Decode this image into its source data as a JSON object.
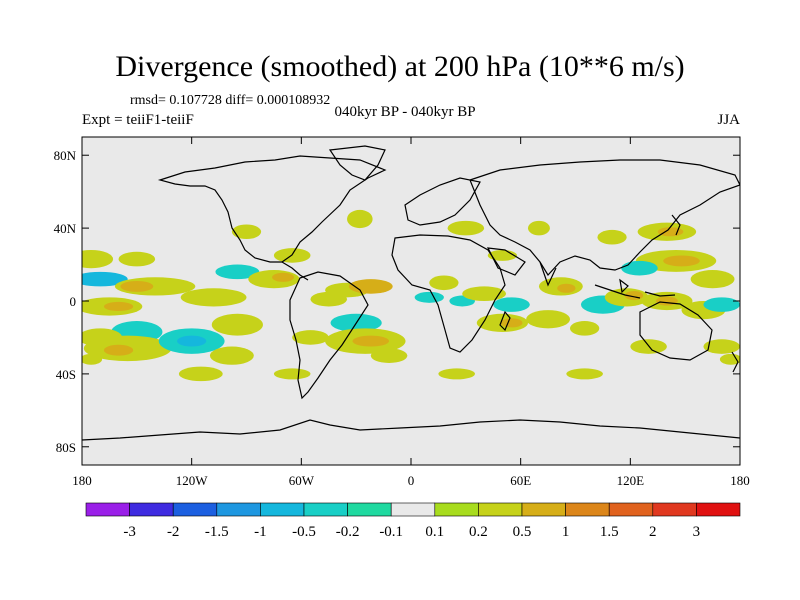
{
  "header": {
    "title": "Divergence (smoothed) at 200 hPa (10**6 m/s)",
    "stats": "rmsd= 0.107728 diff= 0.000108932",
    "period": "040kyr BP - 040kyr BP",
    "experiment": "Expt = teiiF1-teiiF",
    "season": "JJA"
  },
  "axes": {
    "y_ticks": [
      {
        "label": "80N",
        "lat": 80
      },
      {
        "label": "40N",
        "lat": 40
      },
      {
        "label": "0",
        "lat": 0
      },
      {
        "label": "40S",
        "lat": -40
      },
      {
        "label": "80S",
        "lat": -80
      }
    ],
    "x_ticks": [
      {
        "label": "180",
        "lon": -180
      },
      {
        "label": "120W",
        "lon": -120
      },
      {
        "label": "60W",
        "lon": -60
      },
      {
        "label": "0",
        "lon": 0
      },
      {
        "label": "60E",
        "lon": 60
      },
      {
        "label": "120E",
        "lon": 120
      },
      {
        "label": "180",
        "lon": 180
      }
    ],
    "lon_range": [
      -180,
      180
    ],
    "lat_range": [
      -90,
      90
    ]
  },
  "colorbar": {
    "levels": [
      "-3",
      "-2",
      "-1.5",
      "-1",
      "-0.5",
      "-0.2",
      "-0.1",
      "0.1",
      "0.2",
      "0.5",
      "1",
      "1.5",
      "2",
      "3"
    ],
    "colors": [
      "#9a1fe8",
      "#3f2be0",
      "#1c5fe0",
      "#1e97e0",
      "#15b7dd",
      "#19cfc6",
      "#1fd9a0",
      "#e9e9e9",
      "#a8dc1e",
      "#c6d21a",
      "#d6ae18",
      "#dc861a",
      "#e0621e",
      "#e0381f",
      "#e01111"
    ]
  },
  "colors": {
    "background": "#e9e9e9",
    "coast": "#000000"
  },
  "field_blobs": [
    {
      "lon": -175,
      "lat": 23,
      "rlon": 12,
      "rlat": 5,
      "level": "0.2"
    },
    {
      "lon": -150,
      "lat": 23,
      "rlon": 10,
      "rlat": 4,
      "level": "0.2"
    },
    {
      "lon": -170,
      "lat": 12,
      "rlon": 15,
      "rlat": 4,
      "level": "-0.5"
    },
    {
      "lon": -140,
      "lat": 8,
      "rlon": 22,
      "rlat": 5,
      "level": "0.2"
    },
    {
      "lon": -150,
      "lat": 8,
      "rlon": 9,
      "rlat": 3,
      "level": "0.5"
    },
    {
      "lon": -165,
      "lat": -3,
      "rlon": 18,
      "rlat": 5,
      "level": "0.2"
    },
    {
      "lon": -160,
      "lat": -3,
      "rlon": 8,
      "rlat": 2.5,
      "level": "0.5"
    },
    {
      "lon": -108,
      "lat": 2,
      "rlon": 18,
      "rlat": 5,
      "level": "0.2"
    },
    {
      "lon": -95,
      "lat": 16,
      "rlon": 12,
      "rlat": 4,
      "level": "-0.2"
    },
    {
      "lon": -75,
      "lat": 12,
      "rlon": 14,
      "rlat": 5,
      "level": "0.2"
    },
    {
      "lon": -70,
      "lat": 13,
      "rlon": 6,
      "rlat": 2.5,
      "level": "0.5"
    },
    {
      "lon": -150,
      "lat": -17,
      "rlon": 14,
      "rlat": 6,
      "level": "-0.2"
    },
    {
      "lon": -170,
      "lat": -20,
      "rlon": 12,
      "rlat": 5,
      "level": "0.2"
    },
    {
      "lon": -155,
      "lat": -26,
      "rlon": 24,
      "rlat": 7,
      "level": "0.2"
    },
    {
      "lon": -160,
      "lat": -27,
      "rlon": 8,
      "rlat": 3,
      "level": "0.5"
    },
    {
      "lon": -120,
      "lat": -22,
      "rlon": 18,
      "rlat": 7,
      "level": "-0.2"
    },
    {
      "lon": -120,
      "lat": -22,
      "rlon": 8,
      "rlat": 3,
      "level": "-0.5"
    },
    {
      "lon": -95,
      "lat": -13,
      "rlon": 14,
      "rlat": 6,
      "level": "0.2"
    },
    {
      "lon": -98,
      "lat": -30,
      "rlon": 12,
      "rlat": 5,
      "level": "0.2"
    },
    {
      "lon": -175,
      "lat": -32,
      "rlon": 6,
      "rlat": 3,
      "level": "0.2"
    },
    {
      "lon": -45,
      "lat": 1,
      "rlon": 10,
      "rlat": 4,
      "level": "0.2"
    },
    {
      "lon": -35,
      "lat": 6,
      "rlon": 12,
      "rlat": 4,
      "level": "0.2"
    },
    {
      "lon": -22,
      "lat": 8,
      "rlon": 12,
      "rlat": 4,
      "level": "0.5"
    },
    {
      "lon": -30,
      "lat": -12,
      "rlon": 14,
      "rlat": 5,
      "level": "-0.2"
    },
    {
      "lon": -55,
      "lat": -20,
      "rlon": 10,
      "rlat": 4,
      "level": "0.2"
    },
    {
      "lon": -25,
      "lat": -22,
      "rlon": 22,
      "rlat": 7,
      "level": "0.2"
    },
    {
      "lon": -22,
      "lat": -22,
      "rlon": 10,
      "rlat": 3,
      "level": "0.5"
    },
    {
      "lon": -12,
      "lat": -30,
      "rlon": 10,
      "rlat": 4,
      "level": "0.2"
    },
    {
      "lon": -28,
      "lat": 45,
      "rlon": 7,
      "rlat": 5,
      "level": "0.2"
    },
    {
      "lon": -90,
      "lat": 38,
      "rlon": 8,
      "rlat": 4,
      "level": "0.2"
    },
    {
      "lon": -65,
      "lat": 25,
      "rlon": 10,
      "rlat": 4,
      "level": "0.2"
    },
    {
      "lon": 10,
      "lat": 2,
      "rlon": 8,
      "rlat": 3,
      "level": "-0.2"
    },
    {
      "lon": 28,
      "lat": 0,
      "rlon": 7,
      "rlat": 3,
      "level": "-0.2"
    },
    {
      "lon": 18,
      "lat": 10,
      "rlon": 8,
      "rlat": 4,
      "level": "0.2"
    },
    {
      "lon": 40,
      "lat": 4,
      "rlon": 12,
      "rlat": 4,
      "level": "0.2"
    },
    {
      "lon": 55,
      "lat": -2,
      "rlon": 10,
      "rlat": 4,
      "level": "-0.2"
    },
    {
      "lon": 50,
      "lat": -12,
      "rlon": 14,
      "rlat": 5,
      "level": "0.2"
    },
    {
      "lon": 55,
      "lat": -12,
      "rlon": 6,
      "rlat": 2.5,
      "level": "0.5"
    },
    {
      "lon": 75,
      "lat": -10,
      "rlon": 12,
      "rlat": 5,
      "level": "0.2"
    },
    {
      "lon": 82,
      "lat": 8,
      "rlon": 12,
      "rlat": 5,
      "level": "0.2"
    },
    {
      "lon": 85,
      "lat": 7,
      "rlon": 5,
      "rlat": 2.5,
      "level": "0.5"
    },
    {
      "lon": 95,
      "lat": -15,
      "rlon": 8,
      "rlat": 4,
      "level": "0.2"
    },
    {
      "lon": 105,
      "lat": -2,
      "rlon": 12,
      "rlat": 5,
      "level": "-0.2"
    },
    {
      "lon": 118,
      "lat": 2,
      "rlon": 12,
      "rlat": 5,
      "level": "0.2"
    },
    {
      "lon": 122,
      "lat": 3,
      "rlon": 5,
      "rlat": 2.5,
      "level": "0.5"
    },
    {
      "lon": 140,
      "lat": 0,
      "rlon": 14,
      "rlat": 5,
      "level": "0.2"
    },
    {
      "lon": 140,
      "lat": 0,
      "rlon": 6,
      "rlat": 2.5,
      "level": "0.5"
    },
    {
      "lon": 160,
      "lat": -5,
      "rlon": 12,
      "rlat": 5,
      "level": "0.2"
    },
    {
      "lon": 170,
      "lat": -2,
      "rlon": 10,
      "rlat": 4,
      "level": "-0.2"
    },
    {
      "lon": 130,
      "lat": -25,
      "rlon": 10,
      "rlat": 4,
      "level": "0.2"
    },
    {
      "lon": 170,
      "lat": -25,
      "rlon": 10,
      "rlat": 4,
      "level": "0.2"
    },
    {
      "lon": 175,
      "lat": -32,
      "rlon": 6,
      "rlat": 3,
      "level": "0.2"
    },
    {
      "lon": 145,
      "lat": 22,
      "rlon": 22,
      "rlat": 6,
      "level": "0.2"
    },
    {
      "lon": 148,
      "lat": 22,
      "rlon": 10,
      "rlat": 3,
      "level": "0.5"
    },
    {
      "lon": 140,
      "lat": 38,
      "rlon": 16,
      "rlat": 5,
      "level": "0.2"
    },
    {
      "lon": 142,
      "lat": 38,
      "rlon": 7,
      "rlat": 2.5,
      "level": "0.5"
    },
    {
      "lon": 165,
      "lat": 12,
      "rlon": 12,
      "rlat": 5,
      "level": "0.2"
    },
    {
      "lon": 125,
      "lat": 18,
      "rlon": 10,
      "rlat": 4,
      "level": "-0.2"
    },
    {
      "lon": 110,
      "lat": 35,
      "rlon": 8,
      "rlat": 4,
      "level": "0.2"
    },
    {
      "lon": 70,
      "lat": 40,
      "rlon": 6,
      "rlat": 4,
      "level": "0.2"
    },
    {
      "lon": 30,
      "lat": 40,
      "rlon": 10,
      "rlat": 4,
      "level": "0.2"
    },
    {
      "lon": 50,
      "lat": 25,
      "rlon": 8,
      "rlat": 3,
      "level": "0.2"
    },
    {
      "lon": -115,
      "lat": -40,
      "rlon": 12,
      "rlat": 4,
      "level": "0.2"
    },
    {
      "lon": -65,
      "lat": -40,
      "rlon": 10,
      "rlat": 3,
      "level": "0.2"
    },
    {
      "lon": 25,
      "lat": -40,
      "rlon": 10,
      "rlat": 3,
      "level": "0.2"
    },
    {
      "lon": 95,
      "lat": -40,
      "rlon": 10,
      "rlat": 3,
      "level": "0.2"
    }
  ]
}
